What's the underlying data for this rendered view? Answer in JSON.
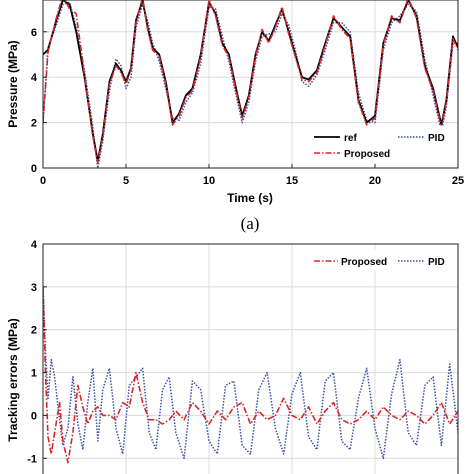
{
  "figure": {
    "panel_a_label": "(a)"
  },
  "chart_data": [
    {
      "type": "line",
      "xlabel": "Time (s)",
      "ylabel": "Pressure (MPa)",
      "xlim": [
        0,
        25
      ],
      "ylim": [
        0,
        7.4
      ],
      "xticks": [
        "0",
        "5",
        "10",
        "15",
        "20",
        "25"
      ],
      "yticks": [
        "0",
        "2",
        "4",
        "6"
      ],
      "grid": true,
      "legend_position": "bottom-right",
      "colors": {
        "ref": "#000000",
        "Proposed": "#d62728",
        "PID": "#3a4fa6"
      },
      "series": [
        {
          "name": "ref",
          "style": "solid",
          "x": [
            0,
            0.3,
            0.8,
            1.2,
            1.6,
            2.0,
            2.5,
            3.0,
            3.3,
            3.6,
            4.0,
            4.4,
            4.7,
            5.0,
            5.3,
            5.6,
            6.0,
            6.3,
            6.6,
            7.0,
            7.4,
            7.8,
            8.2,
            8.6,
            9.0,
            9.5,
            10.0,
            10.4,
            10.8,
            11.2,
            11.6,
            12.0,
            12.4,
            12.8,
            13.2,
            13.6,
            14.0,
            14.4,
            14.8,
            15.2,
            15.6,
            16.0,
            16.5,
            17.0,
            17.5,
            18.0,
            18.5,
            19.0,
            19.5,
            20.0,
            20.5,
            21.0,
            21.5,
            22.0,
            22.5,
            23.0,
            23.5,
            24.0,
            24.3,
            24.7,
            25.0
          ],
          "y": [
            5.0,
            5.2,
            6.5,
            7.4,
            7.2,
            6.0,
            4.0,
            1.5,
            0.3,
            1.5,
            3.8,
            4.6,
            4.3,
            3.8,
            4.4,
            6.5,
            7.4,
            6.2,
            5.3,
            5.0,
            3.8,
            2.0,
            2.4,
            3.2,
            3.5,
            5.0,
            7.3,
            6.8,
            5.5,
            5.0,
            3.6,
            2.3,
            3.2,
            5.0,
            6.0,
            5.6,
            6.3,
            7.0,
            6.0,
            5.0,
            4.0,
            3.9,
            4.3,
            5.5,
            6.6,
            6.2,
            5.8,
            3.0,
            2.0,
            2.3,
            5.5,
            6.6,
            6.5,
            7.4,
            6.7,
            4.5,
            3.5,
            1.9,
            3.0,
            5.8,
            5.3
          ]
        },
        {
          "name": "Proposed",
          "style": "dashdot",
          "x": [
            0,
            0.3,
            0.8,
            1.2,
            1.6,
            2.0,
            2.5,
            3.0,
            3.3,
            3.6,
            4.0,
            4.4,
            4.7,
            5.0,
            5.3,
            5.6,
            6.0,
            6.3,
            6.6,
            7.0,
            7.4,
            7.8,
            8.2,
            8.6,
            9.0,
            9.5,
            10.0,
            10.4,
            10.8,
            11.2,
            11.6,
            12.0,
            12.4,
            12.8,
            13.2,
            13.6,
            14.0,
            14.4,
            14.8,
            15.2,
            15.6,
            16.0,
            16.5,
            17.0,
            17.5,
            18.0,
            18.5,
            19.0,
            19.5,
            20.0,
            20.5,
            21.0,
            21.5,
            22.0,
            22.5,
            23.0,
            23.5,
            24.0,
            24.3,
            24.7,
            25.0
          ],
          "y": [
            2.0,
            5.1,
            6.6,
            7.6,
            7.0,
            6.8,
            4.1,
            1.4,
            0.2,
            1.4,
            3.7,
            4.5,
            4.2,
            3.7,
            4.3,
            6.4,
            7.5,
            6.1,
            5.2,
            4.9,
            3.7,
            1.9,
            2.3,
            3.1,
            3.4,
            4.9,
            7.4,
            6.7,
            5.4,
            4.9,
            3.5,
            2.2,
            3.1,
            4.9,
            6.1,
            5.5,
            6.2,
            7.1,
            5.9,
            4.9,
            3.9,
            3.8,
            4.2,
            5.4,
            6.7,
            6.1,
            5.7,
            2.9,
            1.9,
            2.2,
            5.4,
            6.7,
            6.4,
            7.5,
            6.6,
            4.4,
            3.4,
            1.8,
            2.9,
            5.7,
            5.2
          ]
        },
        {
          "name": "PID",
          "style": "dotted",
          "x": [
            0,
            0.3,
            0.8,
            1.2,
            1.6,
            2.0,
            2.5,
            3.0,
            3.3,
            3.6,
            4.0,
            4.4,
            4.7,
            5.0,
            5.3,
            5.6,
            6.0,
            6.3,
            6.6,
            7.0,
            7.4,
            7.8,
            8.2,
            8.6,
            9.0,
            9.5,
            10.0,
            10.4,
            10.8,
            11.2,
            11.6,
            12.0,
            12.4,
            12.8,
            13.2,
            13.6,
            14.0,
            14.4,
            14.8,
            15.2,
            15.6,
            16.0,
            16.5,
            17.0,
            17.5,
            18.0,
            18.5,
            19.0,
            19.5,
            20.0,
            20.5,
            21.0,
            21.5,
            22.0,
            22.5,
            23.0,
            23.5,
            24.0,
            24.3,
            24.7,
            25.0
          ],
          "y": [
            2.0,
            5.3,
            6.3,
            7.2,
            7.3,
            6.2,
            4.3,
            1.8,
            0.0,
            1.2,
            3.4,
            4.8,
            4.5,
            3.5,
            4.0,
            6.2,
            7.2,
            6.5,
            5.5,
            4.7,
            3.5,
            2.2,
            2.1,
            2.9,
            3.3,
            4.6,
            7.1,
            7.0,
            5.8,
            4.7,
            3.3,
            2.0,
            2.9,
            4.7,
            5.8,
            5.9,
            6.0,
            6.8,
            6.3,
            5.2,
            3.8,
            3.6,
            4.1,
            5.2,
            6.4,
            6.4,
            6.0,
            3.3,
            2.1,
            2.0,
            5.2,
            6.4,
            6.7,
            7.2,
            6.9,
            4.8,
            3.2,
            1.6,
            2.7,
            5.5,
            5.5
          ]
        }
      ]
    },
    {
      "type": "line",
      "xlabel": "",
      "ylabel": "Tracking errors (MPa)",
      "xlim": [
        0,
        25
      ],
      "ylim": [
        -1.6,
        4
      ],
      "yticks": [
        "4",
        "3",
        "2",
        "1",
        "0",
        "-1"
      ],
      "grid": true,
      "legend_position": "top-right",
      "colors": {
        "Proposed": "#d62728",
        "PID": "#3a4fa6"
      },
      "series": [
        {
          "name": "Proposed",
          "style": "dashdot",
          "x": [
            0,
            0.15,
            0.3,
            0.5,
            0.7,
            1.0,
            1.2,
            1.5,
            1.8,
            2.1,
            2.4,
            2.7,
            3.0,
            3.3,
            3.6,
            4.0,
            4.4,
            4.8,
            5.2,
            5.6,
            6.0,
            6.4,
            6.8,
            7.2,
            7.6,
            8.0,
            8.5,
            9.0,
            9.5,
            10.0,
            10.5,
            11.0,
            11.5,
            12.0,
            12.5,
            13.0,
            13.5,
            14.0,
            14.5,
            15.0,
            15.5,
            16.0,
            16.5,
            17.0,
            17.5,
            18.0,
            18.5,
            19.0,
            19.5,
            20.0,
            20.5,
            21.0,
            21.5,
            22.0,
            22.5,
            23.0,
            23.5,
            24.0,
            24.5,
            25.0
          ],
          "y": [
            3.0,
            1.0,
            -0.5,
            -0.9,
            -0.4,
            0.3,
            -0.6,
            -1.1,
            -0.4,
            0.7,
            0.2,
            -0.2,
            0.1,
            0.2,
            0.0,
            0.0,
            -0.1,
            0.3,
            0.2,
            1.0,
            0.3,
            -0.1,
            -0.1,
            -0.2,
            -0.1,
            0.1,
            -0.1,
            0.3,
            0.1,
            -0.2,
            0.1,
            -0.1,
            0.2,
            0.3,
            -0.2,
            0.1,
            -0.1,
            0.0,
            0.4,
            0.0,
            -0.1,
            0.2,
            -0.2,
            0.1,
            0.3,
            -0.1,
            -0.2,
            -0.1,
            0.1,
            -0.1,
            0.2,
            0.0,
            -0.1,
            0.1,
            0.0,
            -0.2,
            0.0,
            0.3,
            -0.2,
            0.1
          ]
        },
        {
          "name": "PID",
          "style": "dotted",
          "x": [
            0,
            0.15,
            0.3,
            0.5,
            0.7,
            1.0,
            1.2,
            1.5,
            1.8,
            2.1,
            2.4,
            2.7,
            3.0,
            3.3,
            3.6,
            4.0,
            4.4,
            4.8,
            5.2,
            5.6,
            6.0,
            6.4,
            6.8,
            7.2,
            7.6,
            8.0,
            8.5,
            9.0,
            9.5,
            10.0,
            10.5,
            11.0,
            11.5,
            12.0,
            12.5,
            13.0,
            13.5,
            14.0,
            14.5,
            15.0,
            15.5,
            16.0,
            16.5,
            17.0,
            17.5,
            18.0,
            18.5,
            19.0,
            19.5,
            20.0,
            20.5,
            21.0,
            21.5,
            22.0,
            22.5,
            23.0,
            23.5,
            24.0,
            24.5,
            25.0
          ],
          "y": [
            3.0,
            1.5,
            0.4,
            1.3,
            0.9,
            -0.1,
            -0.7,
            -0.3,
            0.9,
            -0.2,
            -0.8,
            0.3,
            1.1,
            -0.6,
            0.6,
            1.1,
            -0.3,
            -0.9,
            0.7,
            0.9,
            1.1,
            -0.4,
            -0.8,
            0.6,
            0.9,
            -0.4,
            -1.0,
            0.8,
            0.6,
            -0.6,
            -0.9,
            0.7,
            0.8,
            -0.7,
            -0.9,
            0.6,
            1.0,
            -0.3,
            -0.9,
            0.5,
            1.0,
            -0.5,
            -0.8,
            0.8,
            1.0,
            -0.6,
            -0.8,
            0.4,
            1.1,
            -0.3,
            -1.0,
            0.5,
            1.3,
            -0.4,
            -0.7,
            0.7,
            0.9,
            -0.7,
            1.2,
            -0.4
          ]
        }
      ]
    }
  ]
}
